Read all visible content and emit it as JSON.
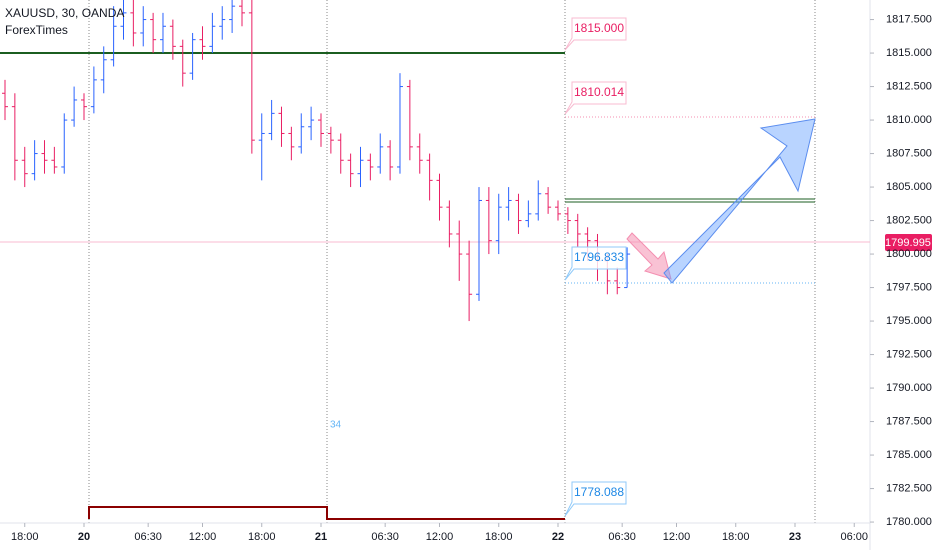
{
  "header": {
    "symbol": "XAUUSD, 30, OANDA",
    "author": "ForexTimes"
  },
  "chart_data": {
    "type": "ohlc",
    "x": [
      19.6667,
      19.7083,
      19.75,
      19.7917,
      19.8333,
      19.875,
      19.9167,
      19.9583,
      20,
      20.0417,
      20.0833,
      20.125,
      20.1667,
      20.2083,
      20.25,
      20.2917,
      20.3333,
      20.375,
      20.4167,
      20.4583,
      20.5,
      20.5417,
      20.5833,
      20.625,
      20.6667,
      20.7083,
      20.75,
      20.7917,
      20.8333,
      20.875,
      20.9167,
      20.9583,
      21,
      21.0417,
      21.0833,
      21.125,
      21.1667,
      21.2083,
      21.25,
      21.2917,
      21.3333,
      21.375,
      21.4167,
      21.4583,
      21.5,
      21.5417,
      21.5833,
      21.625,
      21.6667,
      21.7083,
      21.75,
      21.7917,
      21.8333,
      21.875,
      21.9167,
      21.9583,
      22,
      22.0417,
      22.0833,
      22.125,
      22.1667,
      22.2083,
      22.25,
      22.2917
    ],
    "open": [
      1812,
      1811,
      1807,
      1806,
      1807.5,
      1807,
      1806.5,
      1810,
      1811.5,
      1811,
      1813,
      1814.5,
      1817,
      1818,
      1816.5,
      1817.5,
      1816,
      1817,
      1815.5,
      1813.5,
      1816,
      1815.5,
      1817,
      1817.5,
      1818.5,
      1818,
      1808.5,
      1809,
      1810.5,
      1809,
      1808,
      1809.5,
      1810,
      1809,
      1808.5,
      1807,
      1806,
      1807,
      1806.5,
      1808,
      1806.5,
      1812.5,
      1808,
      1807,
      1805.5,
      1803.5,
      1801.5,
      1800,
      1797,
      1804,
      1801,
      1803.5,
      1804,
      1802.5,
      1803,
      1804.5,
      1803.5,
      1803,
      1802.5,
      1801.5,
      1801,
      1799.5,
      1798,
      1797.5
    ],
    "high": [
      1813,
      1812,
      1808,
      1808.5,
      1808.5,
      1808,
      1810.5,
      1812.5,
      1812,
      1814,
      1815.5,
      1818.5,
      1819,
      1819,
      1818.5,
      1818,
      1818,
      1817.5,
      1816,
      1816.5,
      1817,
      1818,
      1818.5,
      1819,
      1819,
      1819,
      1810.5,
      1811.5,
      1811,
      1809.5,
      1810.5,
      1811,
      1810.5,
      1809.5,
      1809,
      1807.5,
      1808,
      1807.5,
      1809,
      1808.5,
      1813.5,
      1813,
      1809,
      1807.5,
      1806,
      1804,
      1802.5,
      1801,
      1805,
      1805,
      1804.5,
      1805,
      1804.5,
      1804,
      1805.5,
      1805,
      1804,
      1803.5,
      1803,
      1802,
      1801.5,
      1800,
      1799,
      1800.5
    ],
    "low": [
      1810,
      1805.5,
      1805,
      1805.5,
      1806,
      1806,
      1806,
      1809.5,
      1810,
      1810.5,
      1812,
      1814,
      1816,
      1815.5,
      1815.5,
      1815,
      1815,
      1814.5,
      1812.5,
      1813,
      1814.5,
      1815,
      1816,
      1816.5,
      1817,
      1807.5,
      1805.5,
      1808.5,
      1808,
      1807,
      1807.5,
      1808.5,
      1808,
      1807.5,
      1806,
      1805,
      1805,
      1805.5,
      1806,
      1805.5,
      1806,
      1807,
      1806,
      1804,
      1802.5,
      1800.5,
      1798,
      1795,
      1796.5,
      1800,
      1800,
      1802.5,
      1801.5,
      1802,
      1802.5,
      1803,
      1802.5,
      1801.5,
      1800.5,
      1799.5,
      1798,
      1797,
      1797,
      1797.5
    ],
    "close": [
      1811,
      1807,
      1806,
      1807.5,
      1807,
      1806.5,
      1810,
      1811.5,
      1811,
      1813,
      1814.5,
      1817,
      1818,
      1816.5,
      1817.5,
      1816,
      1817,
      1815.5,
      1813.5,
      1816,
      1815.5,
      1817,
      1817.5,
      1818.5,
      1818,
      1808.5,
      1809,
      1810.5,
      1809,
      1808,
      1809.5,
      1810,
      1809,
      1808.5,
      1807,
      1806,
      1807,
      1806.5,
      1808,
      1806.5,
      1812.5,
      1808,
      1807,
      1805.5,
      1803.5,
      1801.5,
      1800,
      1797,
      1804,
      1801,
      1803.5,
      1804,
      1802.5,
      1803,
      1804.5,
      1803.5,
      1803,
      1802.5,
      1801.5,
      1801,
      1799.5,
      1798,
      1797.5,
      1800
    ],
    "up_color": "#2962ff",
    "down_color": "#e91e63",
    "xlim": [
      19.6456,
      23.3165
    ],
    "ylim": [
      1779.93,
      1818.96
    ],
    "xticks": [
      {
        "value": 19.75,
        "label": "18:00"
      },
      {
        "value": 20,
        "label": "20"
      },
      {
        "value": 20.2708,
        "label": "06:30"
      },
      {
        "value": 20.5,
        "label": "12:00"
      },
      {
        "value": 20.75,
        "label": "18:00"
      },
      {
        "value": 21,
        "label": "21"
      },
      {
        "value": 21.2708,
        "label": "06:30"
      },
      {
        "value": 21.5,
        "label": "12:00"
      },
      {
        "value": 21.75,
        "label": "18:00"
      },
      {
        "value": 22,
        "label": "22"
      },
      {
        "value": 22.2708,
        "label": "06:30"
      },
      {
        "value": 22.5,
        "label": "12:00"
      },
      {
        "value": 22.75,
        "label": "18:00"
      },
      {
        "value": 23,
        "label": "23"
      },
      {
        "value": 23.25,
        "label": "06:00"
      }
    ],
    "yticks": [
      {
        "value": 1780,
        "label": "1780.000"
      },
      {
        "value": 1782.5,
        "label": "1782.500"
      },
      {
        "value": 1785,
        "label": "1785.000"
      },
      {
        "value": 1787.5,
        "label": "1787.500"
      },
      {
        "value": 1790,
        "label": "1790.000"
      },
      {
        "value": 1792.5,
        "label": "1792.500"
      },
      {
        "value": 1795,
        "label": "1795.000"
      },
      {
        "value": 1797.5,
        "label": "1797.500"
      },
      {
        "value": 1800,
        "label": "1800.000"
      },
      {
        "value": 1802.5,
        "label": "1802.500"
      },
      {
        "value": 1805,
        "label": "1805.000"
      },
      {
        "value": 1807.5,
        "label": "1807.500"
      },
      {
        "value": 1810,
        "label": "1810.000"
      },
      {
        "value": 1812.5,
        "label": "1812.500"
      },
      {
        "value": 1815,
        "label": "1815.000"
      },
      {
        "value": 1817.5,
        "label": "1817.500"
      }
    ],
    "last_price": "1799.995",
    "price_labels": [
      "1815.000",
      "1810.014",
      "1796.833",
      "1778.088"
    ],
    "annotation": "34"
  }
}
